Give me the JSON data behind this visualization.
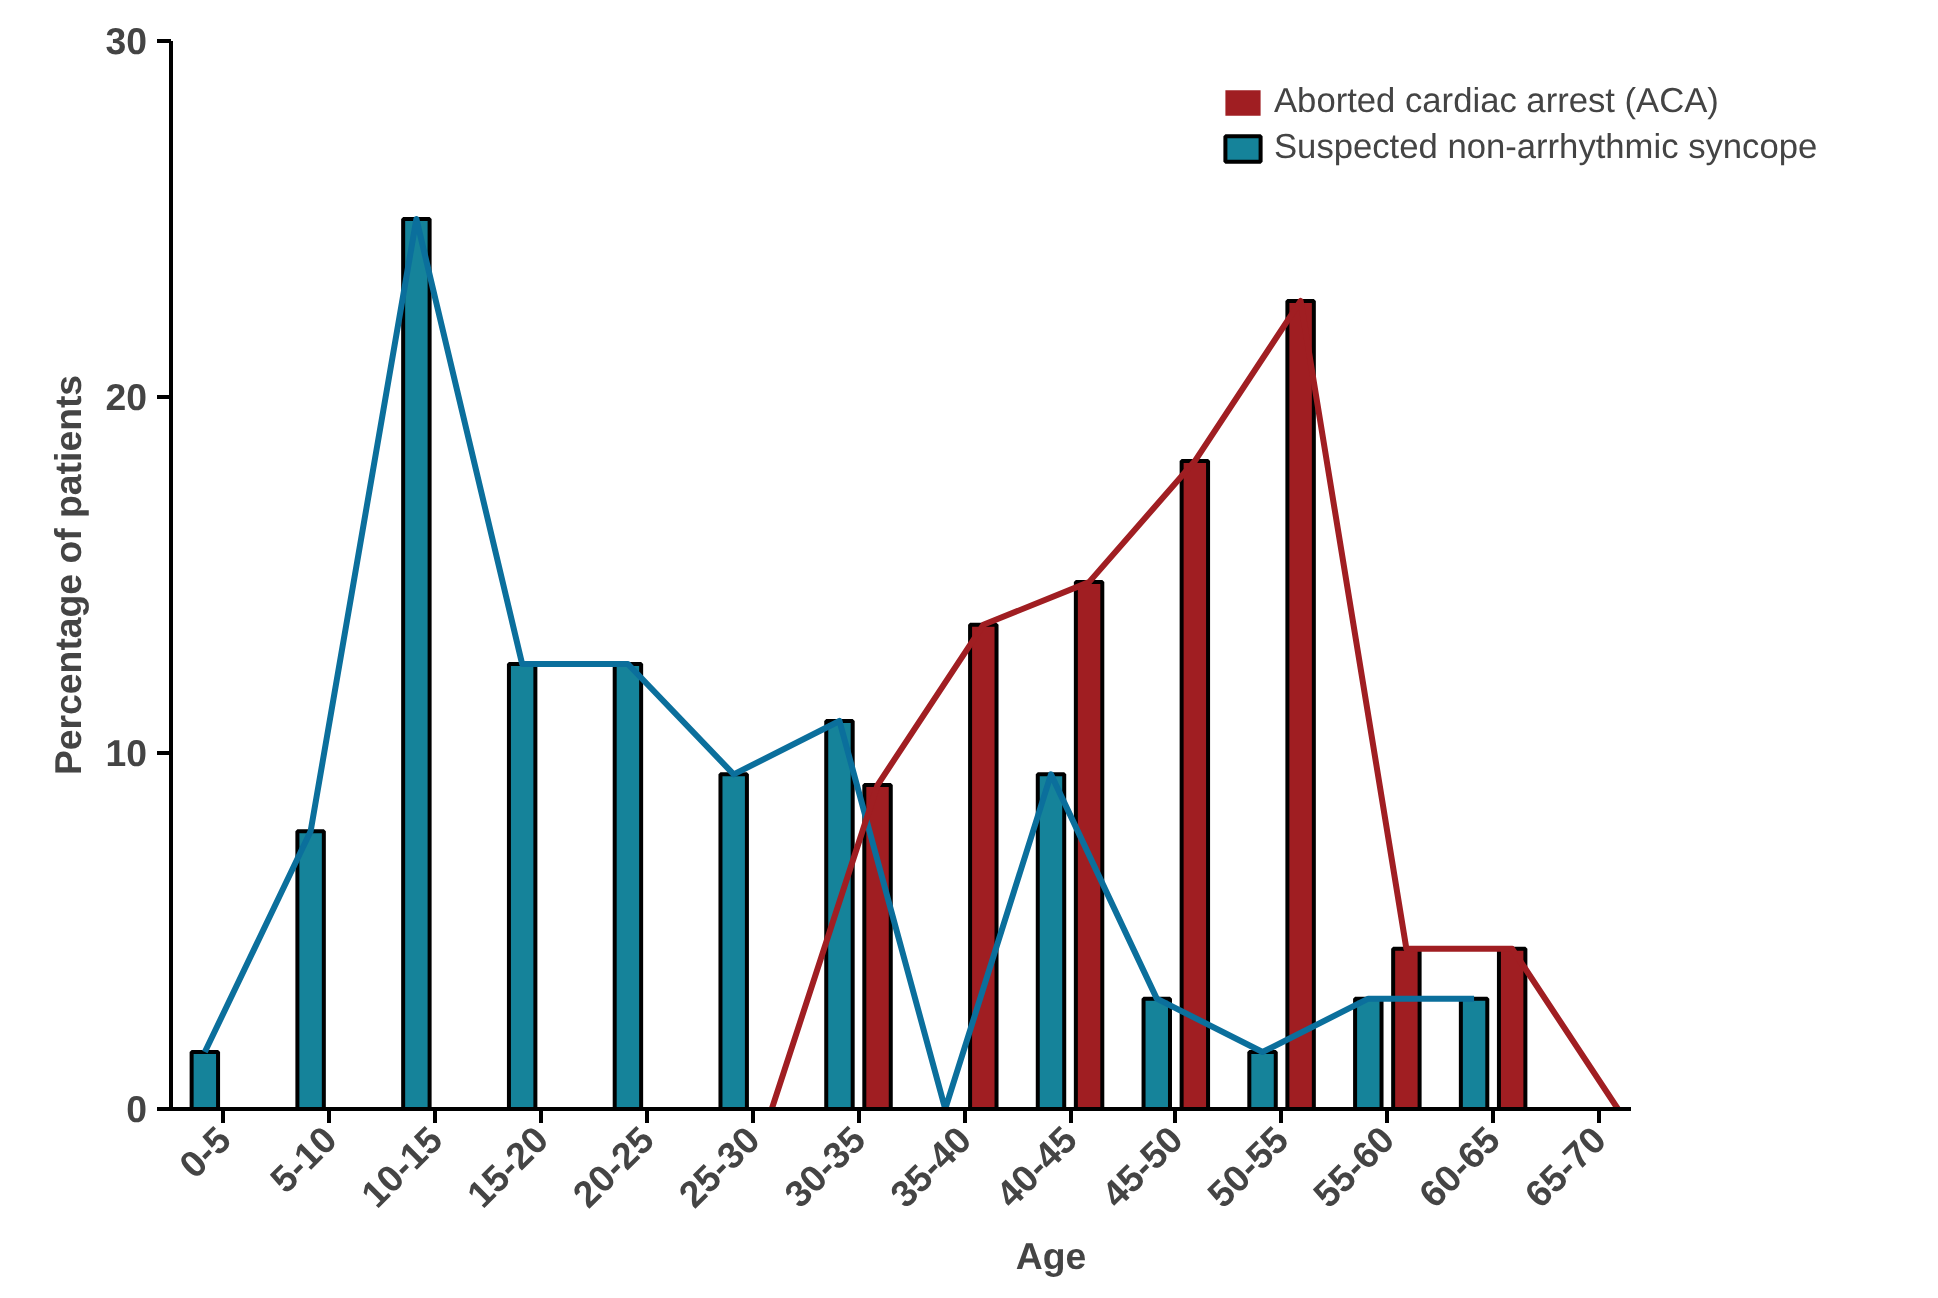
{
  "chart_data": {
    "type": "bar",
    "xlabel": "Age",
    "ylabel": "Percentage of patients",
    "categories": [
      "0-5",
      "5-10",
      "10-15",
      "15-20",
      "20-25",
      "25-30",
      "30-35",
      "35-40",
      "40-45",
      "45-50",
      "50-55",
      "55-60",
      "60-65",
      "65-70"
    ],
    "ylim": [
      0,
      30
    ],
    "yticks": [
      0,
      10,
      20,
      30
    ],
    "grid": false,
    "legend": "top right",
    "marker": "none",
    "line_style": "solid",
    "series": [
      {
        "name": "Suspected non-arrhythmic syncope",
        "color": "#15839a",
        "values": [
          1.6,
          7.8,
          25,
          12.5,
          12.5,
          9.4,
          10.9,
          0,
          9.4,
          3.1,
          1.6,
          3.1,
          3.1,
          null
        ]
      },
      {
        "name": "Aborted cardiac arrest (ACA)",
        "color": "#a01e22",
        "values": [
          null,
          null,
          null,
          null,
          null,
          0,
          9.1,
          13.6,
          14.8,
          18.2,
          22.7,
          4.5,
          4.5,
          0
        ]
      },
      {
        "type": "line",
        "color": "#0b6f9c",
        "values": [
          1.6,
          7.8,
          25,
          12.5,
          12.5,
          9.4,
          10.9,
          0,
          9.4,
          3.1,
          1.6,
          3.1,
          3.1,
          null
        ]
      },
      {
        "type": "line",
        "color": "#a01e22",
        "values": [
          null,
          null,
          null,
          null,
          null,
          0,
          9.1,
          13.6,
          14.8,
          18.2,
          22.7,
          4.5,
          4.5,
          0
        ]
      }
    ]
  }
}
